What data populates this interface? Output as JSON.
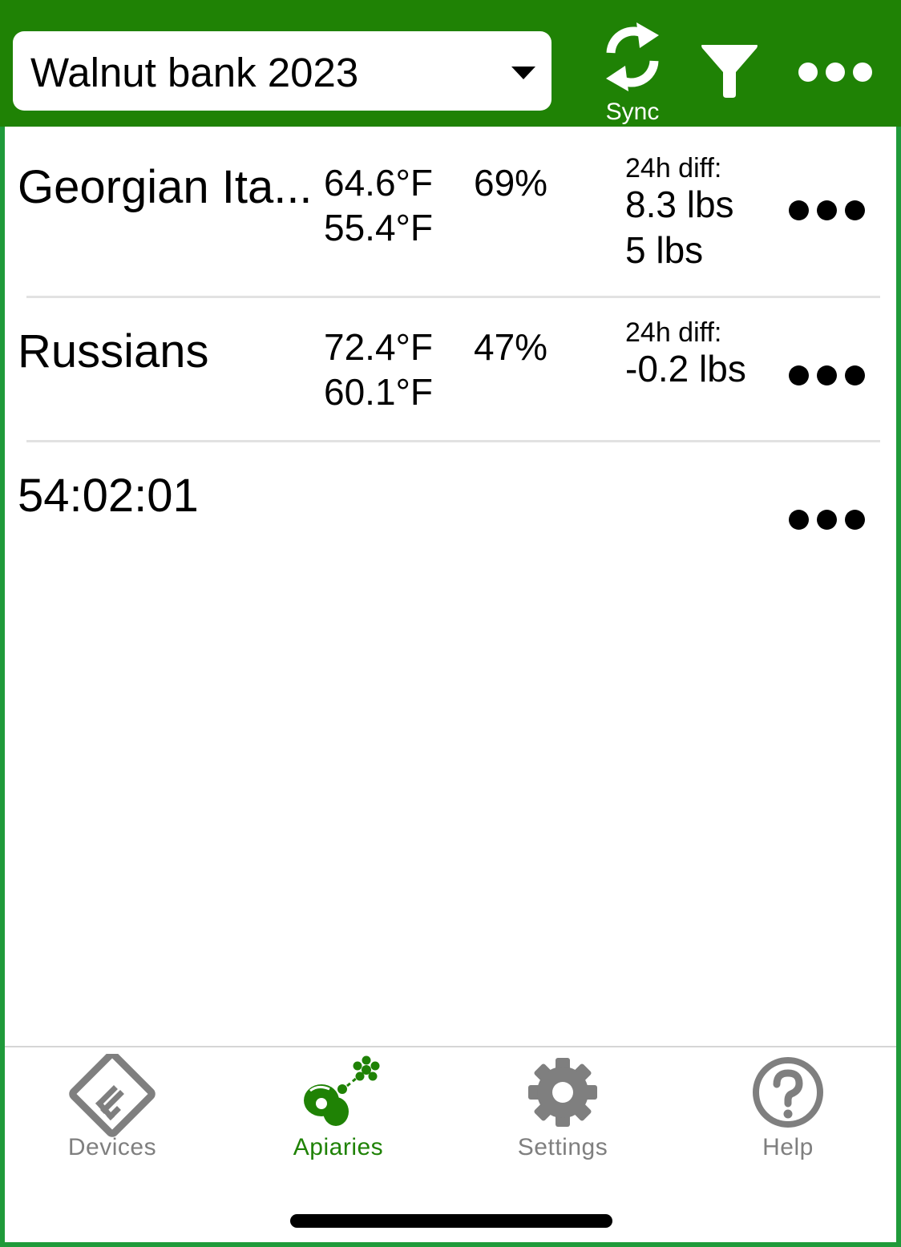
{
  "header": {
    "apiary_selector": "Walnut bank 2023",
    "sync_label": "Sync",
    "icons": [
      "sync-icon",
      "filter-icon",
      "more-icon"
    ],
    "bar_color": "#1f8205"
  },
  "hives": [
    {
      "name": "Georgian Ita...",
      "temp_high": "64.6°F",
      "temp_low": "55.4°F",
      "humidity": "69%",
      "diff_label": "24h diff:",
      "weight_diff": "8.3 lbs",
      "weight": "5 lbs"
    },
    {
      "name": "Russians",
      "temp_high": "72.4°F",
      "temp_low": "60.1°F",
      "humidity": "47%",
      "diff_label": "24h diff:",
      "weight_diff": "-0.2 lbs"
    },
    {
      "name": "54:02:01"
    }
  ],
  "tabbar": {
    "tabs": [
      {
        "label": "Devices",
        "icon": "devices-icon"
      },
      {
        "label": "Apiaries",
        "icon": "apiaries-icon",
        "active": true
      },
      {
        "label": "Settings",
        "icon": "gear-icon"
      },
      {
        "label": "Help",
        "icon": "help-icon"
      }
    ],
    "active_color": "#1f8205",
    "inactive_color": "#7f7f7f"
  }
}
